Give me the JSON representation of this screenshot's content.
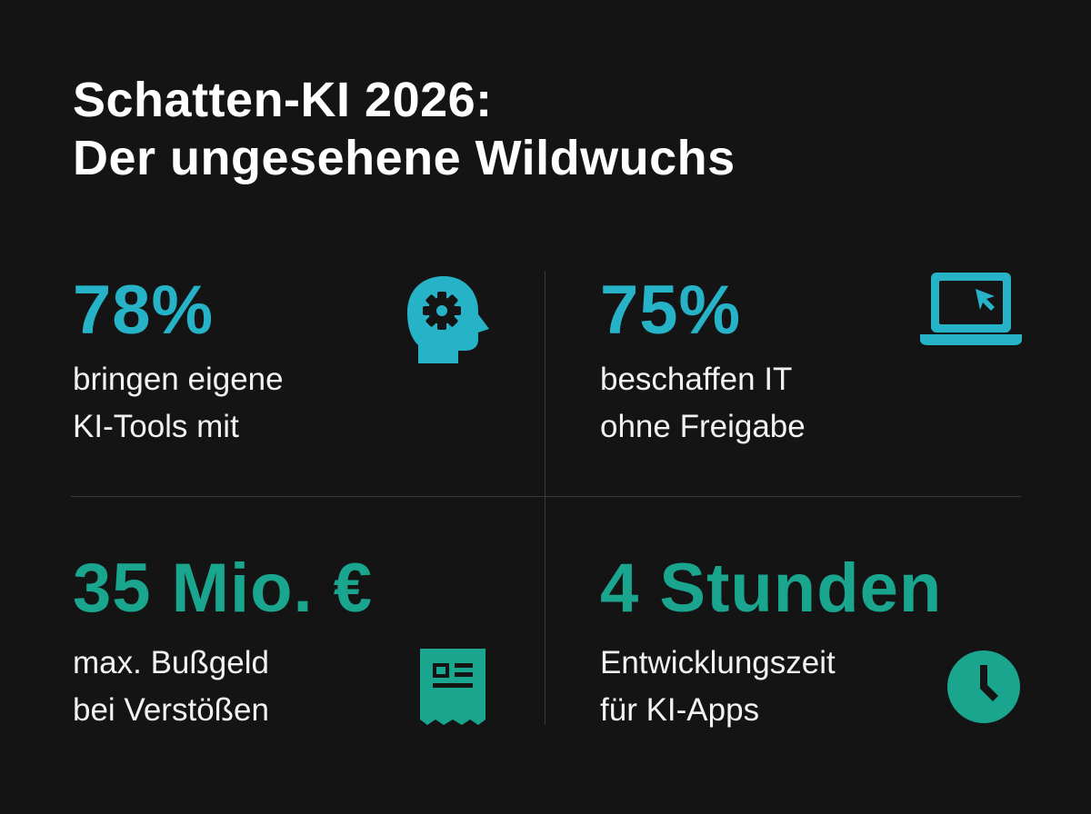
{
  "title": {
    "line1": "Schatten-KI 2026:",
    "line2": "Der ungesehene Wildwuchs"
  },
  "colors": {
    "background": "#141414",
    "cyan": "#26b3c8",
    "green": "#1aa58e",
    "text": "#ffffff",
    "divider": "#3a3a3a"
  },
  "stats": [
    {
      "value": "78%",
      "line1": "bringen eigene",
      "line2": "KI-Tools mit",
      "icon": "head-gear-icon"
    },
    {
      "value": "75%",
      "line1": "beschaffen IT",
      "line2": "ohne Freigabe",
      "icon": "laptop-cursor-icon"
    },
    {
      "value": "35 Mio. €",
      "line1": "max. Bußgeld",
      "line2": "bei Verstößen",
      "icon": "receipt-icon"
    },
    {
      "value": "4 Stunden",
      "line1": "Entwicklungszeit",
      "line2": "für KI-Apps",
      "icon": "clock-icon"
    }
  ]
}
